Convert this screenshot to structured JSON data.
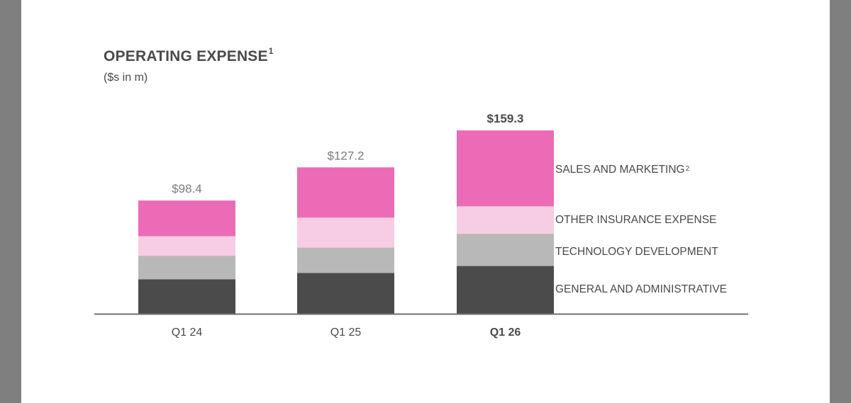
{
  "title": "OPERATING EXPENSE",
  "title_footnote": "1",
  "subtitle": "($s in m)",
  "colors": {
    "sales_and_marketing": "#ec6bb7",
    "other_insurance_expense": "#f7cde4",
    "technology_development": "#b8b8b8",
    "general_and_administrative": "#4b4b4b",
    "axis": "#6f6f6f",
    "text": "#4a4a4a",
    "muted_text": "#7a7a7a"
  },
  "legend": [
    {
      "label": "SALES AND MARKETING",
      "footnote": "2",
      "color_key": "sales_and_marketing"
    },
    {
      "label": "OTHER INSURANCE EXPENSE",
      "footnote": "",
      "color_key": "other_insurance_expense"
    },
    {
      "label": "TECHNOLOGY DEVELOPMENT",
      "footnote": "",
      "color_key": "technology_development"
    },
    {
      "label": "GENERAL AND ADMINISTRATIVE",
      "footnote": "",
      "color_key": "general_and_administrative"
    }
  ],
  "chart_data": {
    "type": "bar",
    "stacked": true,
    "categories": [
      "Q1 24",
      "Q1 25",
      "Q1 26"
    ],
    "highlight_category": "Q1 26",
    "totals": [
      "$98.4",
      "$127.2",
      "$159.3"
    ],
    "total_values": [
      98.4,
      127.2,
      159.3
    ],
    "series": [
      {
        "name": "GENERAL AND ADMINISTRATIVE",
        "color_key": "general_and_administrative",
        "values": [
          30.0,
          35.5,
          41.5
        ]
      },
      {
        "name": "TECHNOLOGY DEVELOPMENT",
        "color_key": "technology_development",
        "values": [
          20.4,
          22.0,
          28.0
        ]
      },
      {
        "name": "OTHER INSURANCE EXPENSE",
        "color_key": "other_insurance_expense",
        "values": [
          17.0,
          26.0,
          23.8
        ]
      },
      {
        "name": "SALES AND MARKETING",
        "color_key": "sales_and_marketing",
        "values": [
          31.0,
          43.7,
          66.0
        ]
      }
    ],
    "ylim": [
      0,
      160
    ],
    "grid": false,
    "legend_position": "right"
  }
}
